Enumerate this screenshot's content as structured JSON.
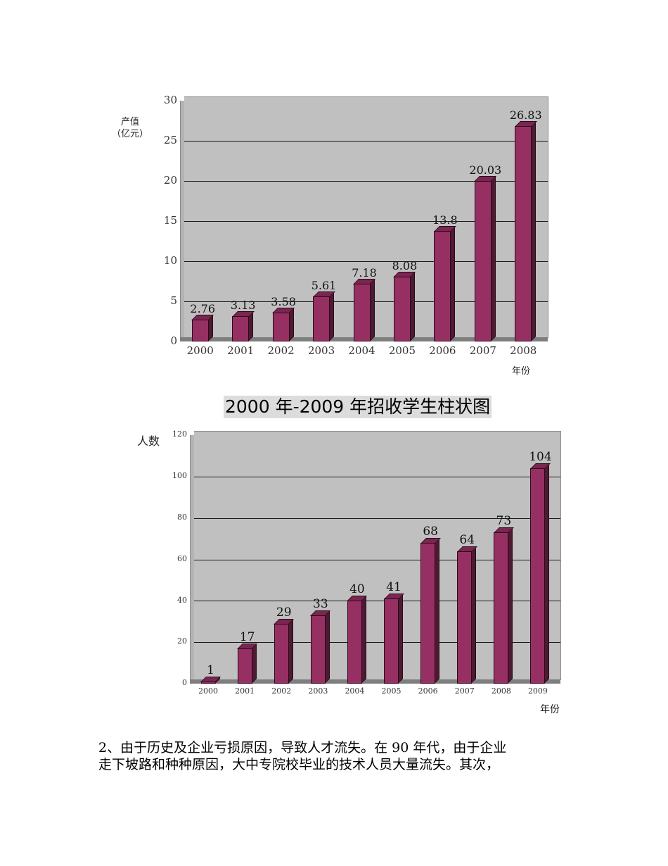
{
  "chart1": {
    "ylabel_line1": "产值",
    "ylabel_line2": "（亿元）",
    "xlabel": "年份",
    "yticks": [
      "30",
      "25",
      "20",
      "15",
      "10",
      "5",
      "0"
    ]
  },
  "chart2": {
    "title": "2000 年-2009 年招收学生柱状图",
    "ylabel": "人数",
    "xlabel": "年份",
    "yticks": [
      "120",
      "100",
      "80",
      "60",
      "40",
      "20",
      "0"
    ]
  },
  "paragraph": {
    "line1": "2、由于历史及企业亏损原因，导致人才流失。在 90 年代，由于企业",
    "line2": "走下坡路和种种原因，大中专院校毕业的技术人员大量流失。其次，"
  },
  "colors": {
    "bar_front": "#973062",
    "bar_side": "#4e1a32",
    "plot_bg": "#c0c0c0"
  },
  "chart_data": [
    {
      "type": "bar",
      "title": "",
      "xlabel": "年份",
      "ylabel": "产值（亿元）",
      "categories": [
        "2000",
        "2001",
        "2002",
        "2003",
        "2004",
        "2005",
        "2006",
        "2007",
        "2008"
      ],
      "values": [
        2.76,
        3.13,
        3.58,
        5.61,
        7.18,
        8.08,
        13.8,
        20.03,
        26.83
      ],
      "value_labels": [
        "2.76",
        "3.13",
        "3.58",
        "5.61",
        "7.18",
        "8.08",
        "13.8",
        "20.03",
        "26.83"
      ],
      "ylim": [
        0,
        30
      ],
      "yticks": [
        0,
        5,
        10,
        15,
        20,
        25,
        30
      ],
      "grid": true,
      "legend": "none",
      "style": "3d-column"
    },
    {
      "type": "bar",
      "title": "2000 年-2009 年招收学生柱状图",
      "xlabel": "年份",
      "ylabel": "人数",
      "categories": [
        "2000",
        "2001",
        "2002",
        "2003",
        "2004",
        "2005",
        "2006",
        "2007",
        "2008",
        "2009"
      ],
      "values": [
        1,
        17,
        29,
        33,
        40,
        41,
        68,
        64,
        73,
        104
      ],
      "value_labels": [
        "1",
        "17",
        "29",
        "33",
        "40",
        "41",
        "68",
        "64",
        "73",
        "104"
      ],
      "ylim": [
        0,
        120
      ],
      "yticks": [
        0,
        20,
        40,
        60,
        80,
        100,
        120
      ],
      "grid": true,
      "legend": "none",
      "style": "3d-column"
    }
  ]
}
